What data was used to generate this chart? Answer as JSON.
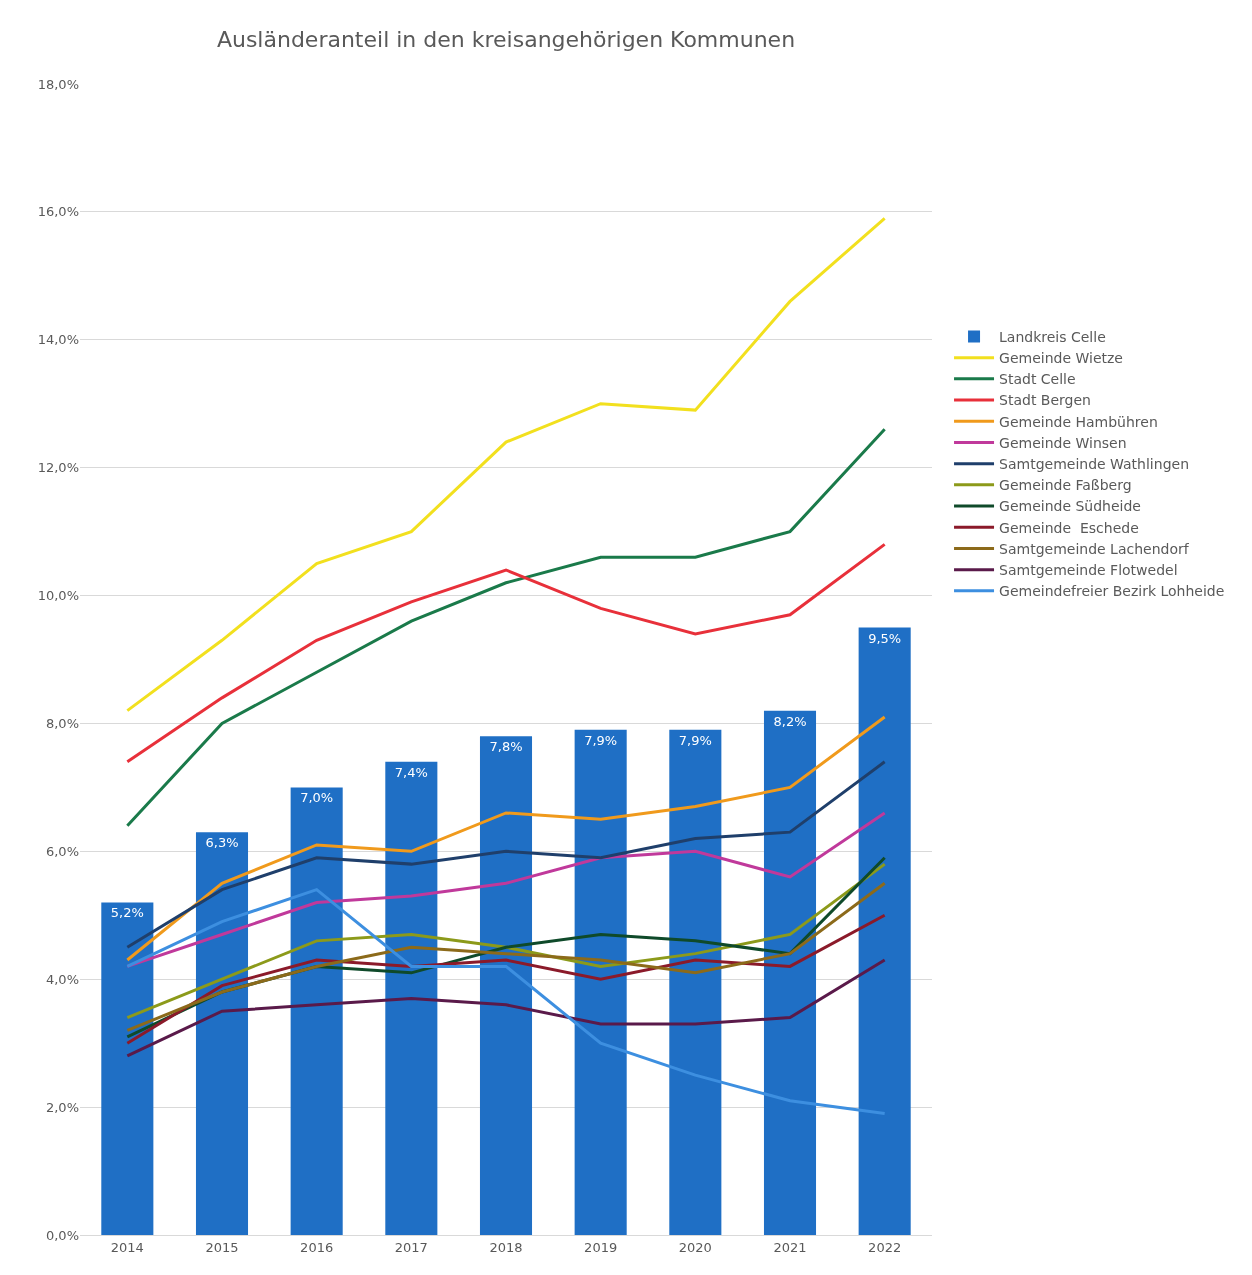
{
  "chart_data": {
    "type": "bar",
    "title": "Ausländeranteil in den kreisangehörigen Kommunen",
    "categories": [
      "2014",
      "2015",
      "2016",
      "2017",
      "2018",
      "2019",
      "2020",
      "2021",
      "2022"
    ],
    "series": [
      {
        "name": "Landkreis Celle",
        "color": "#1f6fc5",
        "values": [
          5.2,
          6.3,
          7.0,
          7.4,
          7.8,
          7.9,
          7.9,
          8.2,
          9.5
        ],
        "value_labels": [
          "5,2%",
          "6,3%",
          "7,0%",
          "7,4%",
          "7,8%",
          "7,9%",
          "7,9%",
          "8,2%",
          "9,5%"
        ]
      },
      {
        "name": "Gemeinde Wietze",
        "type": "line",
        "color": "#f2e01e",
        "values": [
          8.2,
          9.3,
          10.5,
          11.0,
          12.4,
          13.0,
          12.9,
          14.6,
          15.9
        ]
      },
      {
        "name": "Stadt Celle",
        "type": "line",
        "color": "#1a7a4a",
        "values": [
          6.4,
          8.0,
          8.8,
          9.6,
          10.2,
          10.6,
          10.6,
          11.0,
          12.6
        ]
      },
      {
        "name": "Stadt Bergen",
        "type": "line",
        "color": "#e8303a",
        "values": [
          7.4,
          8.4,
          9.3,
          9.9,
          10.4,
          9.8,
          9.4,
          9.7,
          10.8
        ]
      },
      {
        "name": "Gemeinde Hambühren",
        "type": "line",
        "color": "#f09a1c",
        "values": [
          4.3,
          5.5,
          6.1,
          6.0,
          6.6,
          6.5,
          6.7,
          7.0,
          8.1
        ]
      },
      {
        "name": "Gemeinde Winsen",
        "type": "line",
        "color": "#c0399b",
        "values": [
          4.2,
          4.7,
          5.2,
          5.3,
          5.5,
          5.9,
          6.0,
          5.6,
          6.6
        ]
      },
      {
        "name": "Samtgemeinde Wathlingen",
        "type": "line",
        "color": "#1f3f6b",
        "values": [
          4.5,
          5.4,
          5.9,
          5.8,
          6.0,
          5.9,
          6.2,
          6.3,
          7.4
        ]
      },
      {
        "name": "Gemeinde Faßberg",
        "type": "line",
        "color": "#8c9a1a",
        "values": [
          3.4,
          4.0,
          4.6,
          4.7,
          4.5,
          4.2,
          4.4,
          4.7,
          5.8
        ]
      },
      {
        "name": "Gemeinde Südheide",
        "type": "line",
        "color": "#0f4a2a",
        "values": [
          3.1,
          3.8,
          4.2,
          4.1,
          4.5,
          4.7,
          4.6,
          4.4,
          5.9
        ]
      },
      {
        "name": "Gemeinde  Eschede",
        "type": "line",
        "color": "#8b1a2a",
        "values": [
          3.0,
          3.9,
          4.3,
          4.2,
          4.3,
          4.0,
          4.3,
          4.2,
          5.0
        ]
      },
      {
        "name": "Samtgemeinde Lachendorf",
        "type": "line",
        "color": "#8c6a1a",
        "values": [
          3.2,
          3.8,
          4.2,
          4.5,
          4.4,
          4.3,
          4.1,
          4.4,
          5.5
        ]
      },
      {
        "name": "Samtgemeinde Flotwedel",
        "type": "line",
        "color": "#5a1a4a",
        "values": [
          2.8,
          3.5,
          3.6,
          3.7,
          3.6,
          3.3,
          3.3,
          3.4,
          4.3
        ]
      },
      {
        "name": "Gemeindefreier Bezirk Lohheide",
        "type": "line",
        "color": "#3d8fe0",
        "values": [
          4.2,
          4.9,
          5.4,
          4.2,
          4.2,
          3.0,
          2.5,
          2.1,
          1.9
        ]
      }
    ],
    "ylim": [
      0,
      18
    ],
    "yticks": [
      {
        "value": 0,
        "label": "0,0%"
      },
      {
        "value": 2,
        "label": "2,0%"
      },
      {
        "value": 4,
        "label": "4,0%"
      },
      {
        "value": 6,
        "label": "6,0%"
      },
      {
        "value": 8,
        "label": "8,0%"
      },
      {
        "value": 10,
        "label": "10,0%"
      },
      {
        "value": 12,
        "label": "12,0%"
      },
      {
        "value": 14,
        "label": "14,0%"
      },
      {
        "value": 16,
        "label": "16,0%"
      },
      {
        "value": 18,
        "label": "18,0%"
      }
    ],
    "grid": "y",
    "legend": "right",
    "marker": "none",
    "line_style": "solid"
  }
}
